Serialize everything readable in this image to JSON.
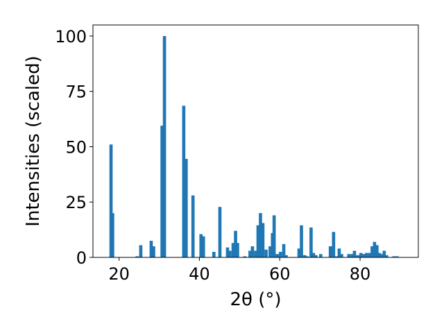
{
  "chart_data": {
    "type": "bar",
    "xlabel": "2θ (°)",
    "ylabel": "Intensities (scaled)",
    "xlim": [
      13.5,
      94.5
    ],
    "ylim": [
      0,
      105
    ],
    "xticks": [
      20,
      40,
      60,
      80
    ],
    "yticks": [
      0,
      25,
      50,
      75,
      100
    ],
    "grid": false,
    "bar_width": 0.8,
    "colors": {
      "bar": "#1f77b4"
    },
    "bars": [
      {
        "x": 18.0,
        "y": 51
      },
      {
        "x": 18.4,
        "y": 20
      },
      {
        "x": 24.5,
        "y": 0.5
      },
      {
        "x": 25.4,
        "y": 5.5
      },
      {
        "x": 28.0,
        "y": 7.5
      },
      {
        "x": 28.6,
        "y": 5
      },
      {
        "x": 30.7,
        "y": 59.5
      },
      {
        "x": 31.3,
        "y": 100
      },
      {
        "x": 36.1,
        "y": 68.5
      },
      {
        "x": 36.7,
        "y": 44.5
      },
      {
        "x": 38.4,
        "y": 28
      },
      {
        "x": 40.4,
        "y": 10.5
      },
      {
        "x": 41.0,
        "y": 9.5
      },
      {
        "x": 43.6,
        "y": 2.5
      },
      {
        "x": 45.1,
        "y": 22.8
      },
      {
        "x": 47.0,
        "y": 4.5
      },
      {
        "x": 47.6,
        "y": 3
      },
      {
        "x": 48.4,
        "y": 6.5
      },
      {
        "x": 49.0,
        "y": 12
      },
      {
        "x": 49.5,
        "y": 6.5
      },
      {
        "x": 51.3,
        "y": 0.5
      },
      {
        "x": 52.6,
        "y": 3
      },
      {
        "x": 53.2,
        "y": 5
      },
      {
        "x": 54.0,
        "y": 3
      },
      {
        "x": 54.6,
        "y": 14.5
      },
      {
        "x": 55.2,
        "y": 20
      },
      {
        "x": 55.8,
        "y": 15.5
      },
      {
        "x": 56.6,
        "y": 3.5
      },
      {
        "x": 57.6,
        "y": 5
      },
      {
        "x": 58.2,
        "y": 11
      },
      {
        "x": 58.6,
        "y": 19
      },
      {
        "x": 59.4,
        "y": 1.5
      },
      {
        "x": 60.2,
        "y": 2.5
      },
      {
        "x": 61.0,
        "y": 6
      },
      {
        "x": 61.6,
        "y": 1
      },
      {
        "x": 64.8,
        "y": 4
      },
      {
        "x": 65.4,
        "y": 14.5
      },
      {
        "x": 66.2,
        "y": 1
      },
      {
        "x": 66.8,
        "y": 0.5
      },
      {
        "x": 67.8,
        "y": 13.5
      },
      {
        "x": 68.4,
        "y": 2
      },
      {
        "x": 69.0,
        "y": 1
      },
      {
        "x": 70.2,
        "y": 1.5
      },
      {
        "x": 72.6,
        "y": 5
      },
      {
        "x": 73.4,
        "y": 11.5
      },
      {
        "x": 74.2,
        "y": 0.5
      },
      {
        "x": 74.8,
        "y": 4
      },
      {
        "x": 75.4,
        "y": 1.5
      },
      {
        "x": 77.2,
        "y": 1.5
      },
      {
        "x": 78.0,
        "y": 1.5
      },
      {
        "x": 78.6,
        "y": 3
      },
      {
        "x": 79.4,
        "y": 1
      },
      {
        "x": 80.2,
        "y": 2
      },
      {
        "x": 80.8,
        "y": 1.5
      },
      {
        "x": 81.6,
        "y": 2
      },
      {
        "x": 82.4,
        "y": 2
      },
      {
        "x": 83.0,
        "y": 5
      },
      {
        "x": 83.6,
        "y": 7
      },
      {
        "x": 84.2,
        "y": 5.5
      },
      {
        "x": 84.8,
        "y": 2
      },
      {
        "x": 85.4,
        "y": 1.5
      },
      {
        "x": 86.0,
        "y": 3
      },
      {
        "x": 86.6,
        "y": 1
      },
      {
        "x": 88.4,
        "y": 0.5
      },
      {
        "x": 89.2,
        "y": 0.5
      }
    ]
  }
}
